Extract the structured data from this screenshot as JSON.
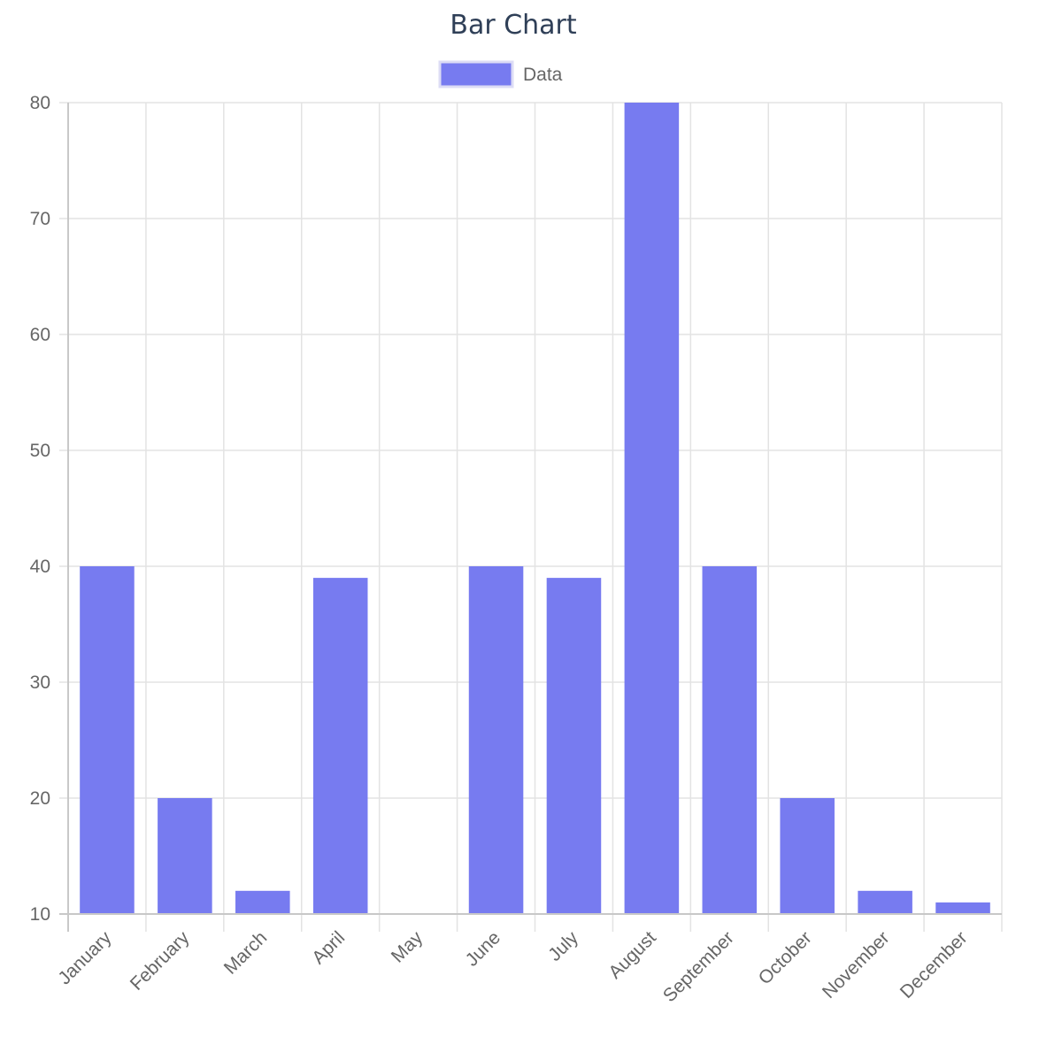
{
  "chart_data": {
    "type": "bar",
    "title": "Bar Chart",
    "categories": [
      "January",
      "February",
      "March",
      "April",
      "May",
      "June",
      "July",
      "August",
      "September",
      "October",
      "November",
      "December"
    ],
    "series": [
      {
        "name": "Data",
        "values": [
          40,
          20,
          12,
          39,
          10,
          40,
          39,
          80,
          40,
          20,
          12,
          11
        ]
      }
    ],
    "xlabel": "",
    "ylabel": "",
    "ylim": [
      10,
      80
    ],
    "yticks": [
      10,
      20,
      30,
      40,
      50,
      60,
      70,
      80
    ],
    "grid": true,
    "legend": "top-center",
    "colors": {
      "bar_fill": "#777bf0",
      "legend_border": "#dcdcf5"
    }
  }
}
